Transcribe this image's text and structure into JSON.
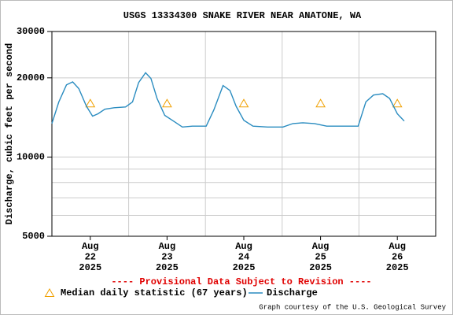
{
  "chart_data": {
    "type": "line",
    "title": "USGS 13334300 SNAKE RIVER NEAR ANATONE, WA",
    "y_label": "Discharge, cubic feet per second",
    "note": "---- Provisional Data Subject to Revision ----",
    "credit": "Graph courtesy of the U.S. Geological Survey",
    "log_y": true,
    "ylim": [
      5000,
      30000
    ],
    "yticks": [
      5000,
      10000,
      20000,
      30000
    ],
    "yminor": [
      6000,
      7000,
      8000,
      9000
    ],
    "xlim": [
      21.5,
      26.5
    ],
    "xticks": [
      {
        "value": 22,
        "label": [
          "Aug",
          "22",
          "2025"
        ]
      },
      {
        "value": 23,
        "label": [
          "Aug",
          "23",
          "2025"
        ]
      },
      {
        "value": 24,
        "label": [
          "Aug",
          "24",
          "2025"
        ]
      },
      {
        "value": 25,
        "label": [
          "Aug",
          "25",
          "2025"
        ]
      },
      {
        "value": 26,
        "label": [
          "Aug",
          "26",
          "2025"
        ]
      }
    ],
    "xgrid": [
      22.5,
      23.5,
      24.5,
      25.5
    ],
    "grid": true,
    "series": [
      {
        "name": "Median daily statistic (67 years)",
        "color": "#f0a000",
        "marker": "triangle",
        "x": [
          22,
          23,
          24,
          25,
          26
        ],
        "values": [
          16000,
          16000,
          16000,
          16000,
          16000
        ]
      },
      {
        "name": "Discharge",
        "color": "#2a8cc0",
        "marker": "line",
        "x": [
          21.5,
          21.59,
          21.69,
          21.77,
          21.85,
          21.95,
          22.03,
          22.1,
          22.19,
          22.31,
          22.46,
          22.55,
          22.63,
          22.72,
          22.79,
          22.87,
          22.97,
          23.1,
          23.2,
          23.33,
          23.51,
          23.61,
          23.73,
          23.82,
          23.9,
          24.0,
          24.12,
          24.31,
          24.51,
          24.64,
          24.77,
          24.92,
          25.08,
          25.33,
          25.49,
          25.59,
          25.69,
          25.81,
          25.9,
          26.0,
          26.09
        ],
        "values": [
          13400,
          16200,
          18800,
          19300,
          18200,
          15600,
          14300,
          14600,
          15200,
          15400,
          15500,
          16200,
          19200,
          20900,
          19900,
          16700,
          14400,
          13600,
          13000,
          13100,
          13100,
          15100,
          18700,
          17900,
          15600,
          13800,
          13100,
          13000,
          13000,
          13400,
          13500,
          13400,
          13100,
          13100,
          13100,
          16200,
          17200,
          17400,
          16700,
          14600,
          13700
        ]
      }
    ]
  }
}
